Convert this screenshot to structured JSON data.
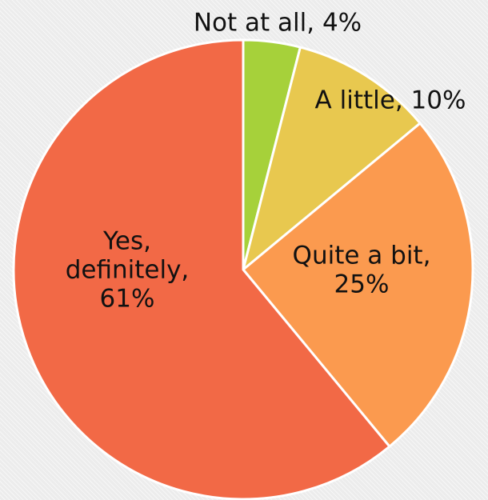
{
  "chart_data": {
    "type": "pie",
    "title": "",
    "start_angle_deg": 0,
    "direction": "clockwise",
    "slices": [
      {
        "label_lines": [
          "Not at all, 4%"
        ],
        "category": "Not at all",
        "value": 4,
        "color": "#a6d13a"
      },
      {
        "label_lines": [
          "A little, 10%"
        ],
        "category": "A little",
        "value": 10,
        "color": "#e8c84f"
      },
      {
        "label_lines": [
          "Quite a bit,",
          "25%"
        ],
        "category": "Quite a bit",
        "value": 25,
        "color": "#fb9a4f"
      },
      {
        "label_lines": [
          "Yes,",
          "definitely,",
          "61%"
        ],
        "category": "Yes, definitely",
        "value": 61,
        "color": "#f26946"
      }
    ]
  }
}
